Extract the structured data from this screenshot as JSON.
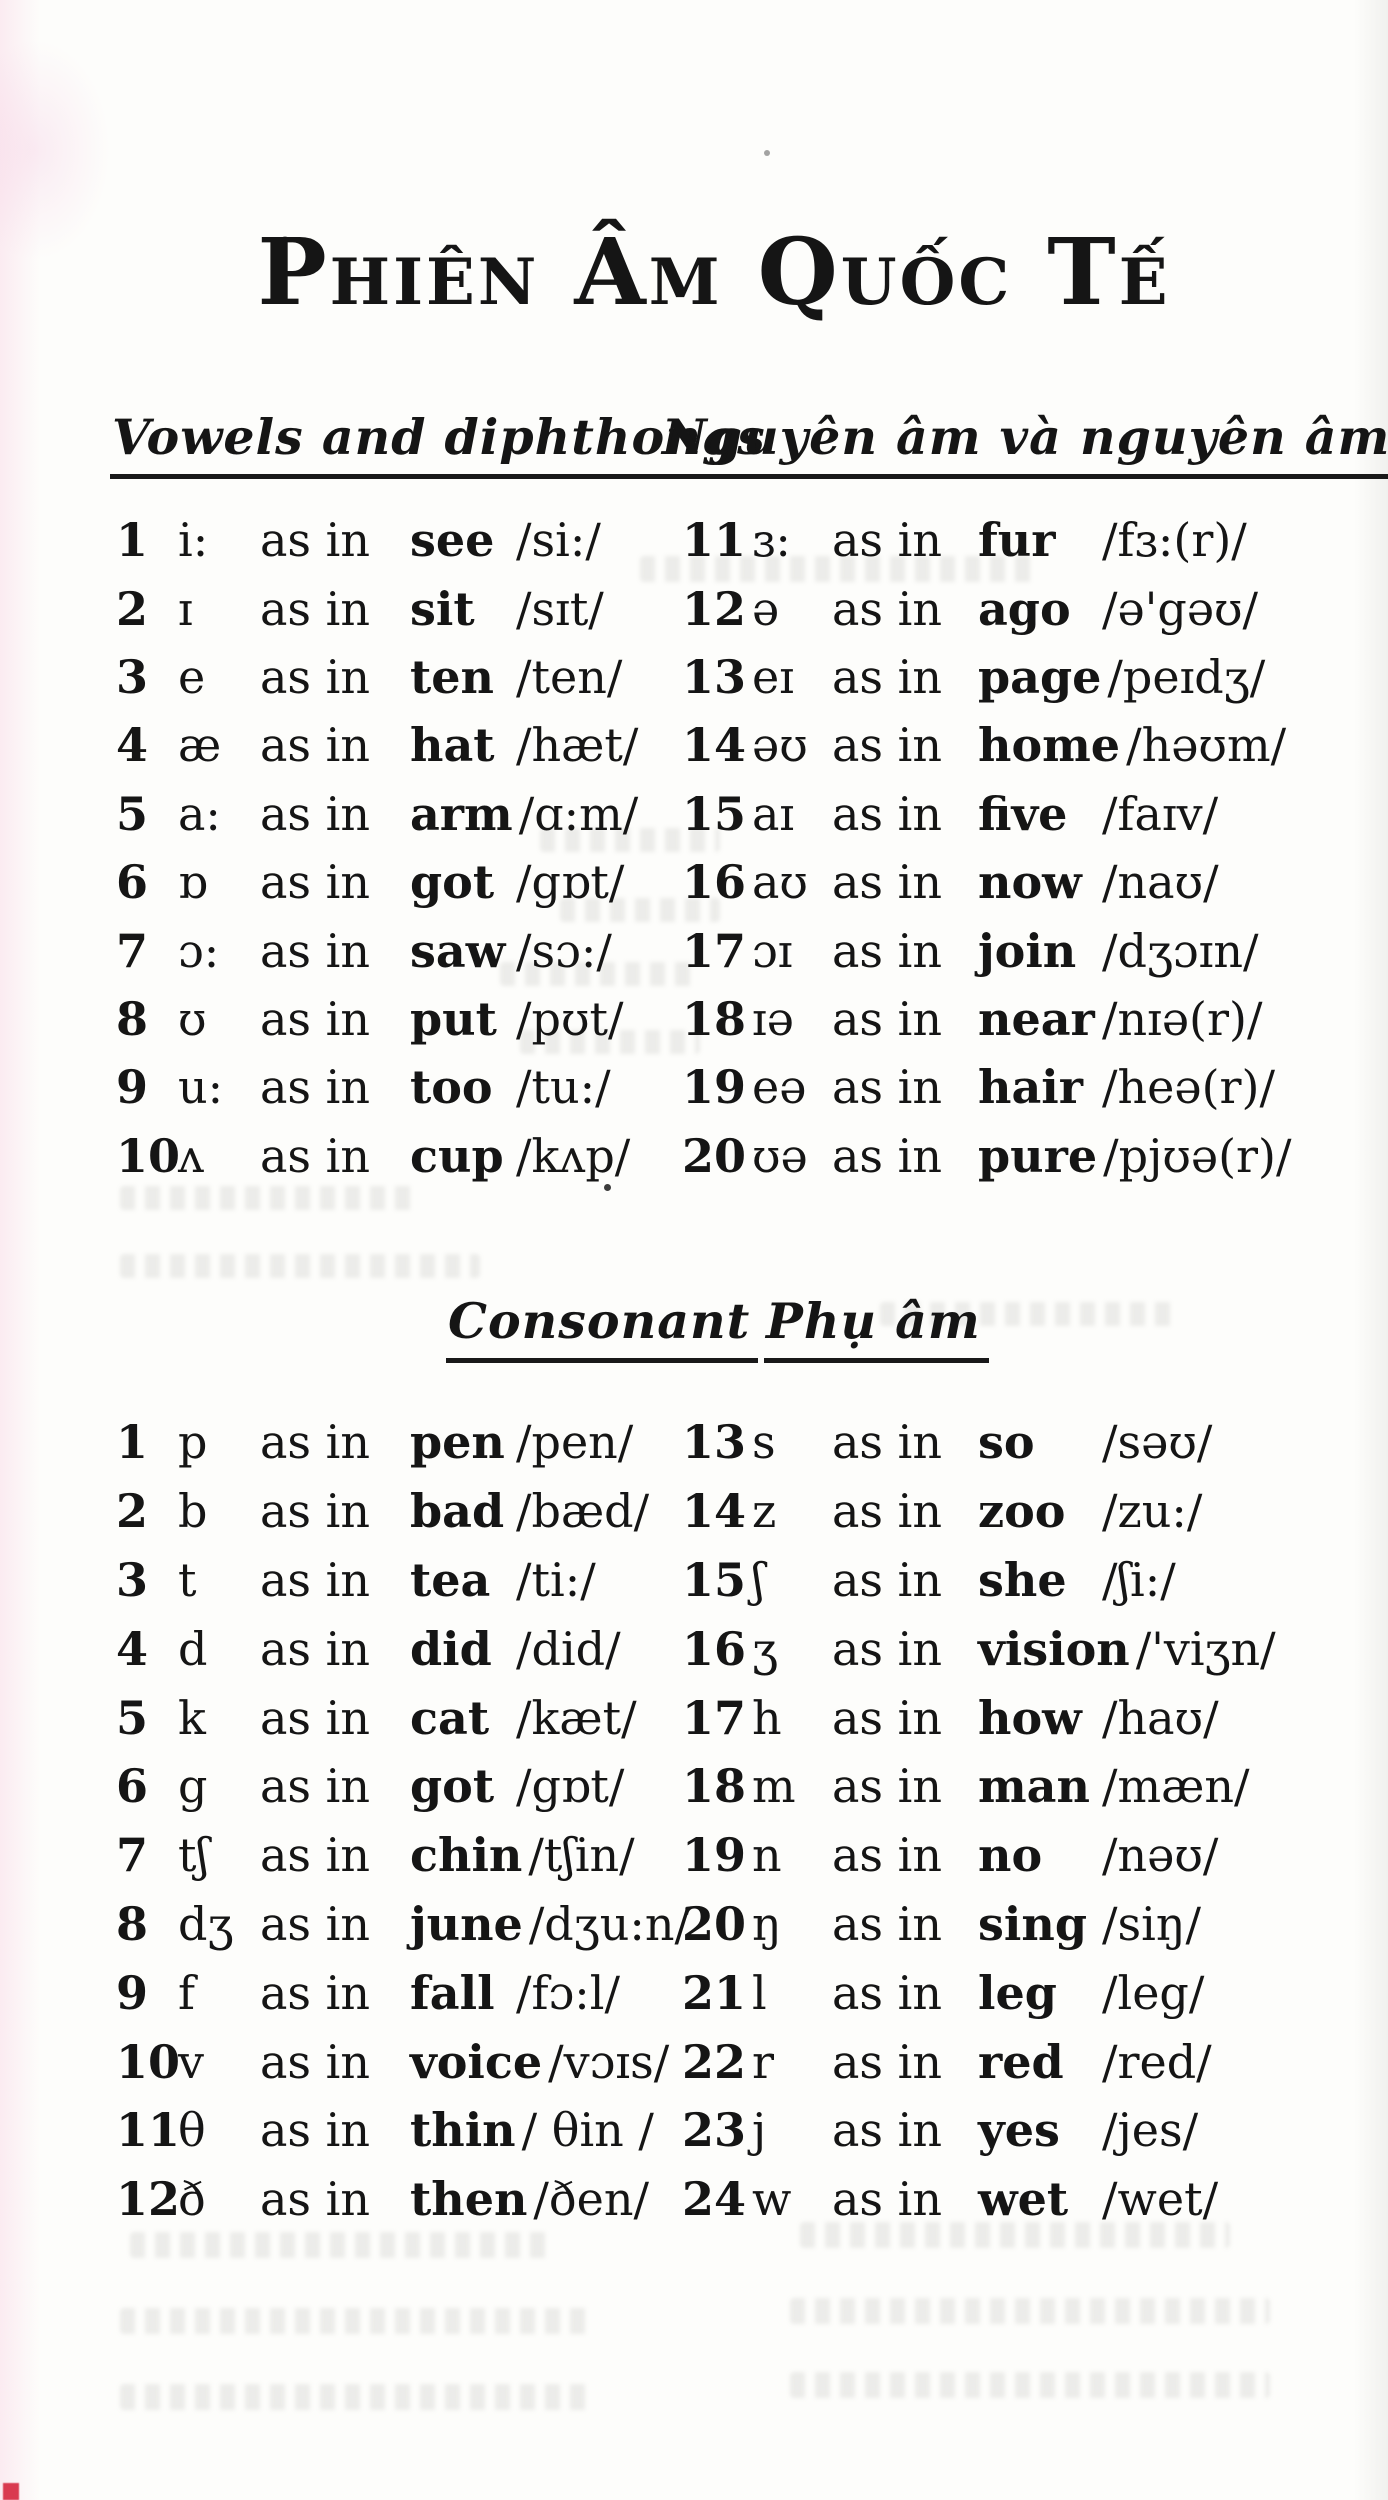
{
  "title": "Phiên Âm Quốc Tế",
  "as_in_label": "as in",
  "vowels": {
    "heading_en": "Vowels and diphthongs",
    "heading_vi": "Nguyên âm và nguyên âm đôi",
    "left_rows": [
      {
        "num": "1",
        "symbol": "i:",
        "word": "see",
        "ipa": "/si:/"
      },
      {
        "num": "2",
        "symbol": "ɪ",
        "word": "sit",
        "ipa": "/sɪt/"
      },
      {
        "num": "3",
        "symbol": "e",
        "word": "ten",
        "ipa": "/ten/"
      },
      {
        "num": "4",
        "symbol": "æ",
        "word": "hat",
        "ipa": "/hæt/"
      },
      {
        "num": "5",
        "symbol": "a:",
        "word": "arm",
        "ipa": "/ɑ:m/"
      },
      {
        "num": "6",
        "symbol": "ɒ",
        "word": "got",
        "ipa": "/gɒt/"
      },
      {
        "num": "7",
        "symbol": "ɔ:",
        "word": "saw",
        "ipa": "/sɔ:/"
      },
      {
        "num": "8",
        "symbol": "ʊ",
        "word": "put",
        "ipa": "/pʊt/"
      },
      {
        "num": "9",
        "symbol": "u:",
        "word": "too",
        "ipa": "/tu:/"
      },
      {
        "num": "10",
        "symbol": "ʌ",
        "word": "cup",
        "ipa": "/kʌp/"
      }
    ],
    "right_rows": [
      {
        "num": "11",
        "symbol": "ɜ:",
        "word": "fur",
        "ipa": "/fɜ:(r)/"
      },
      {
        "num": "12",
        "symbol": "ə",
        "word": "ago",
        "ipa": "/ə'gəʊ/"
      },
      {
        "num": "13",
        "symbol": "eɪ",
        "word": "page",
        "ipa": "/peɪdʒ/"
      },
      {
        "num": "14",
        "symbol": "əʊ",
        "word": "home",
        "ipa": "/həʊm/"
      },
      {
        "num": "15",
        "symbol": "aɪ",
        "word": "five",
        "ipa": "/faɪv/"
      },
      {
        "num": "16",
        "symbol": "aʊ",
        "word": "now",
        "ipa": "/naʊ/"
      },
      {
        "num": "17",
        "symbol": "ɔɪ",
        "word": "join",
        "ipa": "/dʒɔɪn/"
      },
      {
        "num": "18",
        "symbol": "ɪə",
        "word": "near",
        "ipa": "/nɪə(r)/"
      },
      {
        "num": "19",
        "symbol": "eə",
        "word": "hair",
        "ipa": "/heə(r)/"
      },
      {
        "num": "20",
        "symbol": "ʊə",
        "word": "pure",
        "ipa": "/pjʊə(r)/"
      }
    ]
  },
  "consonants": {
    "heading_en": "Consonant",
    "heading_vi": "Phụ âm",
    "left_rows": [
      {
        "num": "1",
        "symbol": "p",
        "word": "pen",
        "ipa": "/pen/"
      },
      {
        "num": "2",
        "symbol": "b",
        "word": "bad",
        "ipa": "/bæd/"
      },
      {
        "num": "3",
        "symbol": "t",
        "word": "tea",
        "ipa": "/ti:/"
      },
      {
        "num": "4",
        "symbol": "d",
        "word": "did",
        "ipa": "/did/"
      },
      {
        "num": "5",
        "symbol": "k",
        "word": "cat",
        "ipa": "/kæt/"
      },
      {
        "num": "6",
        "symbol": "g",
        "word": "got",
        "ipa": "/gɒt/"
      },
      {
        "num": "7",
        "symbol": "tʃ",
        "word": "chin",
        "ipa": "/tʃin/"
      },
      {
        "num": "8",
        "symbol": "dʒ",
        "word": "june",
        "ipa": "/dʒu:n/"
      },
      {
        "num": "9",
        "symbol": "f",
        "word": "fall",
        "ipa": "/fɔ:l/"
      },
      {
        "num": "10",
        "symbol": "v",
        "word": "voice",
        "ipa": "/vɔɪs/"
      },
      {
        "num": "11",
        "symbol": "θ",
        "word": "thin",
        "ipa": "/ θin /"
      },
      {
        "num": "12",
        "symbol": "ð",
        "word": "then",
        "ipa": "/ðen/"
      }
    ],
    "right_rows": [
      {
        "num": "13",
        "symbol": "s",
        "word": "so",
        "ipa": "/səʊ/"
      },
      {
        "num": "14",
        "symbol": "z",
        "word": "zoo",
        "ipa": "/zu:/"
      },
      {
        "num": "15",
        "symbol": "ʃ",
        "word": "she",
        "ipa": "/ʃi:/"
      },
      {
        "num": "16",
        "symbol": "ʒ",
        "word": "vision",
        "ipa": "/'viʒn/"
      },
      {
        "num": "17",
        "symbol": "h",
        "word": "how",
        "ipa": "/haʊ/"
      },
      {
        "num": "18",
        "symbol": "m",
        "word": "man",
        "ipa": "/mæn/"
      },
      {
        "num": "19",
        "symbol": "n",
        "word": "no",
        "ipa": "/nəʊ/"
      },
      {
        "num": "20",
        "symbol": "ŋ",
        "word": "sing",
        "ipa": "/siŋ/"
      },
      {
        "num": "21",
        "symbol": "l",
        "word": "leg",
        "ipa": "/leg/"
      },
      {
        "num": "22",
        "symbol": "r",
        "word": "red",
        "ipa": "/red/"
      },
      {
        "num": "23",
        "symbol": "j",
        "word": "yes",
        "ipa": "/jes/"
      },
      {
        "num": "24",
        "symbol": "w",
        "word": "wet",
        "ipa": "/wet/"
      }
    ]
  }
}
